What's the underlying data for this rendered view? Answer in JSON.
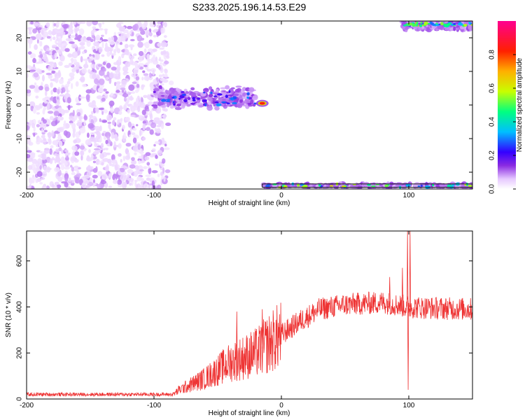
{
  "figure": {
    "title": "S233.2025.196.14.53.E29"
  },
  "chart_data": [
    {
      "type": "heatmap",
      "xlabel": "Height of straight line (km)",
      "ylabel": "Frequency (Hz)",
      "xlim": [
        -200,
        150
      ],
      "ylim": [
        -25,
        25
      ],
      "xticks": [
        -200,
        -100,
        0,
        100
      ],
      "yticks": [
        -20,
        -10,
        0,
        10,
        20
      ],
      "colorbar": {
        "label": "Normalized spectral amplitude",
        "range": [
          0,
          1
        ],
        "ticks": [
          "0.0",
          "0.2",
          "0.4",
          "0.6",
          "0.8"
        ],
        "colormap": [
          "#ffffff",
          "#e6c8ff",
          "#8a2be2",
          "#3300ff",
          "#00bfff",
          "#00ff80",
          "#c8ff00",
          "#ffb000",
          "#ff2000",
          "#ff0090"
        ]
      },
      "features": [
        {
          "kind": "scatter-field",
          "x": [
            -200,
            -90
          ],
          "y": [
            -25,
            25
          ],
          "level": 0.1
        },
        {
          "kind": "band",
          "x": [
            -100,
            -20
          ],
          "y": [
            0,
            4
          ],
          "level": 0.35
        },
        {
          "kind": "peak",
          "x": -15,
          "y": 0.5,
          "level": 0.9
        },
        {
          "kind": "band",
          "x": [
            -15,
            150
          ],
          "y": [
            -24.5,
            -23.5
          ],
          "level": 0.6
        },
        {
          "kind": "band",
          "x": [
            95,
            150
          ],
          "y": [
            23.5,
            24.5
          ],
          "level": 0.6
        }
      ]
    },
    {
      "type": "line",
      "xlabel": "Height of straight line (km)",
      "ylabel": "SNR (10 * v/v)",
      "xlim": [
        -200,
        150
      ],
      "ylim": [
        0,
        730
      ],
      "xticks": [
        -200,
        -100,
        0,
        100
      ],
      "yticks": [
        0,
        200,
        400,
        600
      ],
      "color": "#ee3333",
      "trend": {
        "x": [
          -200,
          -85,
          -80,
          -60,
          -40,
          -20,
          0,
          15,
          30,
          50,
          80,
          100,
          120,
          150
        ],
        "y": [
          20,
          20,
          40,
          90,
          160,
          200,
          280,
          340,
          390,
          410,
          420,
          400,
          395,
          390
        ]
      },
      "spikes": [
        {
          "x": -35,
          "y": 380
        },
        {
          "x": -15,
          "y": 390
        },
        {
          "x": 85,
          "y": 530
        },
        {
          "x": 95,
          "y": 570
        },
        {
          "x": 99,
          "y": 730
        },
        {
          "x": 99.5,
          "y": 40
        },
        {
          "x": 101,
          "y": 730
        }
      ]
    }
  ]
}
